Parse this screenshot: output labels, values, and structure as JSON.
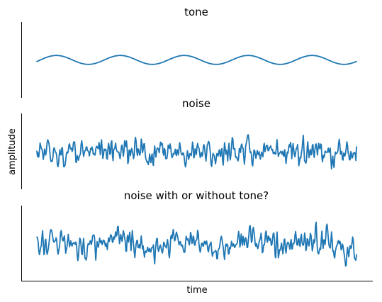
{
  "chart_data": [
    {
      "type": "line",
      "title": "tone",
      "xlabel": "",
      "ylabel": "",
      "ylim": [
        -1.7,
        1.7
      ],
      "series": [
        {
          "generator": "sine",
          "samples": 500,
          "cycles": 5,
          "amplitude": 0.2,
          "color": "#1f77b4"
        }
      ]
    },
    {
      "type": "line",
      "title": "noise",
      "xlabel": "",
      "ylabel": "",
      "ylim": [
        -1.7,
        1.7
      ],
      "series": [
        {
          "generator": "noise",
          "samples": 500,
          "std": 0.3,
          "color": "#1f77b4"
        }
      ]
    },
    {
      "type": "line",
      "title": "noise with or without tone?",
      "xlabel": "",
      "ylabel": "",
      "ylim": [
        -1.7,
        1.7
      ],
      "series": [
        {
          "generator": "noise+sine",
          "samples": 500,
          "cycles": 5,
          "amplitude": 0.2,
          "std": 0.3,
          "color": "#1f77b4"
        }
      ]
    }
  ],
  "figure": {
    "ylabel": "amplitude",
    "xlabel": "time"
  }
}
